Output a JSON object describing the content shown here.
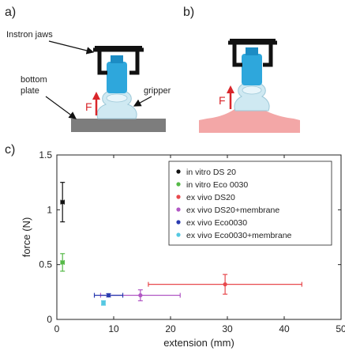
{
  "panels": {
    "a": {
      "label": "a)",
      "annotations": {
        "jaws": "Instron jaws",
        "bottom": "bottom",
        "plate": "plate",
        "gripper": "gripper",
        "force": "F"
      }
    },
    "b": {
      "label": "b)",
      "annotations": {
        "force": "F"
      }
    },
    "c": {
      "label": "c)"
    }
  },
  "colors": {
    "jaw": "#111111",
    "gripper_blue": "#2ea7dc",
    "gripper_cap": "#1c8cc4",
    "suction": "#cfe9f2",
    "plate": "#7d7d7d",
    "tissue": "#f3a7a7",
    "force_arrow": "#d9262b"
  },
  "chart_data": {
    "type": "scatter",
    "title": "",
    "xlabel": "extension (mm)",
    "ylabel": "force (N)",
    "xlim": [
      0,
      50
    ],
    "ylim": [
      0,
      1.5
    ],
    "xticks": [
      "0",
      "10",
      "20",
      "30",
      "40",
      "50"
    ],
    "yticks": [
      "0",
      "0.5",
      "1",
      "1.5"
    ],
    "grid": false,
    "legend_position": "top-right",
    "series": [
      {
        "name": "in vitro DS 20",
        "color": "#111111",
        "x": 1.0,
        "y": 1.07,
        "xerr": 0.3,
        "yerr": 0.18
      },
      {
        "name": "in vitro Eco 0030",
        "color": "#55b947",
        "x": 1.0,
        "y": 0.52,
        "xerr": 0.3,
        "yerr": 0.08
      },
      {
        "name": "ex vivo DS20",
        "color": "#e8494d",
        "x": 29.6,
        "y": 0.32,
        "xerr": 13.5,
        "yerr": 0.09
      },
      {
        "name": "ex vivo DS20+membrane",
        "color": "#b157c4",
        "x": 14.7,
        "y": 0.22,
        "xerr": 7.0,
        "yerr": 0.05
      },
      {
        "name": "ex vivo Eco0030",
        "color": "#2a3bb0",
        "x": 9.1,
        "y": 0.22,
        "xerr": 2.5,
        "yerr": 0.015
      },
      {
        "name": "ex vivo Eco0030+membrane",
        "color": "#55c8e2",
        "x": 8.2,
        "y": 0.15,
        "xerr": 0.3,
        "yerr": 0.02
      }
    ]
  }
}
